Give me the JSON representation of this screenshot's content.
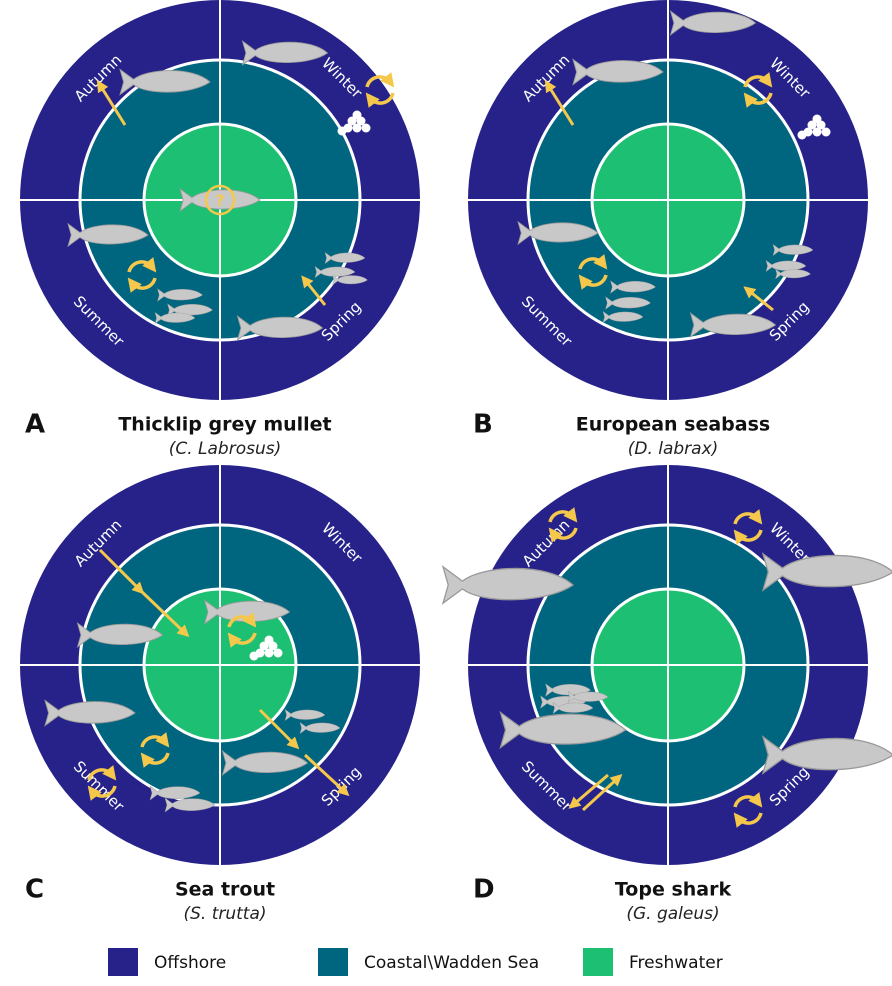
{
  "panels": [
    {
      "letter": "A",
      "title": "Thicklip grey mullet",
      "species": "(C. Labrosus)",
      "seasons": [
        "Autumn",
        "Winter",
        "Summer",
        "Spring"
      ],
      "marker": "?"
    },
    {
      "letter": "B",
      "title": "European seabass",
      "species": "(D. labrax)",
      "seasons": [
        "Autumn",
        "Winter",
        "Summer",
        "Spring"
      ]
    },
    {
      "letter": "C",
      "title": "Sea trout",
      "species": "(S. trutta)",
      "seasons": [
        "Autumn",
        "Winter",
        "Summer",
        "Spring"
      ]
    },
    {
      "letter": "D",
      "title": "Tope shark",
      "species": "(G. galeus)",
      "seasons": [
        "Autumn",
        "Winter",
        "Summer",
        "Spring"
      ]
    }
  ],
  "legend": [
    {
      "label": "Offshore",
      "color": "#26228a"
    },
    {
      "label": "Coastal\\Wadden Sea",
      "color": "#006680"
    },
    {
      "label": "Freshwater",
      "color": "#1dbf73"
    }
  ]
}
